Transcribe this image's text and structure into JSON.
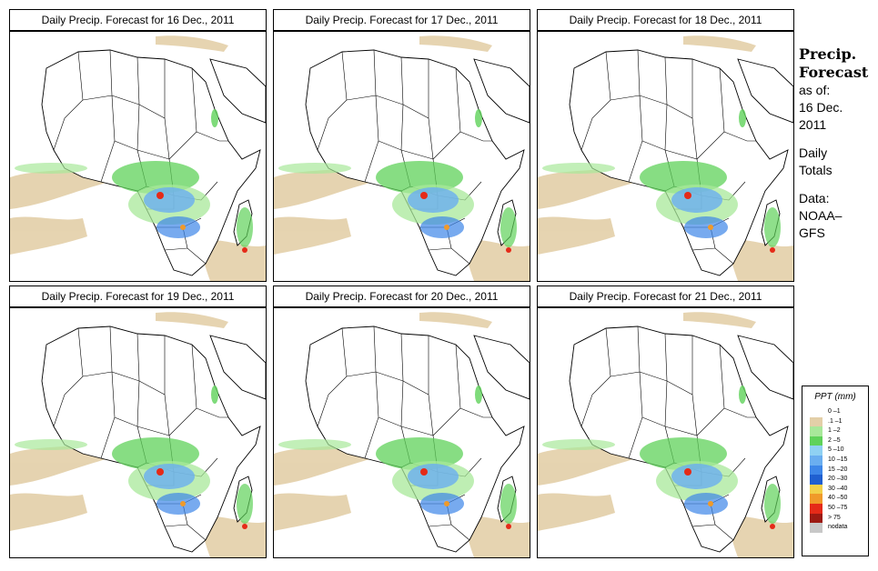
{
  "panels": [
    {
      "title": "Daily Precip. Forecast for  16 Dec., 2011"
    },
    {
      "title": "Daily Precip. Forecast for  17 Dec., 2011"
    },
    {
      "title": "Daily Precip. Forecast for  18 Dec., 2011"
    },
    {
      "title": "Daily Precip. Forecast for  19 Dec., 2011"
    },
    {
      "title": "Daily Precip. Forecast for  20 Dec., 2011"
    },
    {
      "title": "Daily Precip. Forecast for  21 Dec., 2011"
    }
  ],
  "side": {
    "heading1": "Precip.",
    "heading2": "Forecast",
    "asof1": "as of:",
    "asof2": "16 Dec.",
    "asof3": "2011",
    "daily1": "Daily",
    "daily2": "Totals",
    "data1": "Data:",
    "data2": "NOAA–",
    "data3": "GFS"
  },
  "legend": {
    "title": "PPT (mm)",
    "items": [
      {
        "label": "0 –1",
        "color": "#ffffff"
      },
      {
        "label": ".1 –1",
        "color": "#e3cfa8"
      },
      {
        "label": "1 –2",
        "color": "#a8e89a"
      },
      {
        "label": "2 –5",
        "color": "#5fd25a"
      },
      {
        "label": "5 –10",
        "color": "#8fd1f3"
      },
      {
        "label": "10 –15",
        "color": "#6aaef0"
      },
      {
        "label": "15 –20",
        "color": "#3d86e8"
      },
      {
        "label": "20 –30",
        "color": "#1f5fd0"
      },
      {
        "label": "30 –40",
        "color": "#f2d14a"
      },
      {
        "label": "40 –50",
        "color": "#f09a2a"
      },
      {
        "label": "50 –75",
        "color": "#e52a18"
      },
      {
        "label": "> 75",
        "color": "#9c1a12"
      },
      {
        "label": "nodata",
        "color": "#c8c8c8"
      }
    ]
  }
}
